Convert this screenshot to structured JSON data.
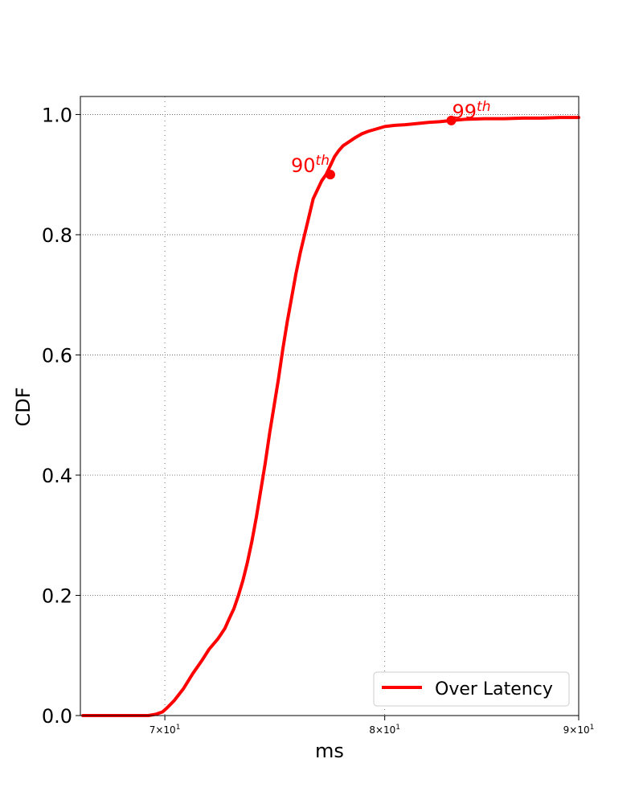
{
  "chart_data": {
    "type": "line",
    "title": "",
    "xlabel": "ms",
    "ylabel": "CDF",
    "xscale": "log",
    "xlim": [
      66.5,
      90
    ],
    "ylim": [
      0.0,
      1.03
    ],
    "grid": true,
    "legend_position": "lower-right",
    "x_ticks": [
      {
        "value": 70,
        "mantissa": "7",
        "base": "10",
        "exp": "1"
      },
      {
        "value": 80,
        "mantissa": "8",
        "base": "10",
        "exp": "1"
      },
      {
        "value": 90,
        "mantissa": "9",
        "base": "10",
        "exp": "1"
      }
    ],
    "y_ticks": [
      {
        "value": 0.0,
        "label": "0.0"
      },
      {
        "value": 0.2,
        "label": "0.2"
      },
      {
        "value": 0.4,
        "label": "0.4"
      },
      {
        "value": 0.6,
        "label": "0.6"
      },
      {
        "value": 0.8,
        "label": "0.8"
      },
      {
        "value": 1.0,
        "label": "1.0"
      }
    ],
    "series": [
      {
        "name": "Over Latency",
        "color": "#ff0000",
        "x": [
          66.6,
          68.0,
          69.3,
          69.6,
          69.9,
          70.1,
          70.4,
          70.8,
          71.2,
          71.6,
          71.9,
          72.3,
          72.6,
          72.8,
          73.0,
          73.2,
          73.4,
          73.6,
          73.8,
          74.0,
          74.2,
          74.4,
          74.6,
          74.8,
          75.0,
          75.2,
          75.4,
          75.6,
          75.8,
          76.0,
          76.2,
          76.4,
          76.6,
          76.8,
          77.0,
          77.2,
          77.4,
          77.6,
          77.8,
          78.0,
          78.3,
          78.6,
          78.9,
          79.2,
          79.6,
          80.0,
          80.5,
          81.0,
          81.6,
          82.2,
          82.7,
          83.3,
          84.0,
          85.0,
          86.0,
          87.0,
          88.0,
          89.0,
          90.0
        ],
        "y": [
          0.0,
          0.0,
          0.0,
          0.002,
          0.006,
          0.013,
          0.025,
          0.045,
          0.07,
          0.092,
          0.11,
          0.128,
          0.145,
          0.162,
          0.178,
          0.2,
          0.225,
          0.255,
          0.29,
          0.33,
          0.375,
          0.42,
          0.47,
          0.515,
          0.56,
          0.61,
          0.655,
          0.695,
          0.735,
          0.77,
          0.8,
          0.83,
          0.86,
          0.875,
          0.89,
          0.9,
          0.915,
          0.93,
          0.94,
          0.948,
          0.955,
          0.962,
          0.968,
          0.972,
          0.976,
          0.98,
          0.982,
          0.983,
          0.985,
          0.987,
          0.988,
          0.99,
          0.992,
          0.993,
          0.993,
          0.994,
          0.994,
          0.995,
          0.995
        ]
      }
    ],
    "annotations": [
      {
        "text": "90",
        "sup": "th",
        "x": 77.4,
        "y": 0.9,
        "align": "left"
      },
      {
        "text": "99",
        "sup": "th",
        "x": 83.3,
        "y": 0.99,
        "align": "right"
      }
    ]
  }
}
